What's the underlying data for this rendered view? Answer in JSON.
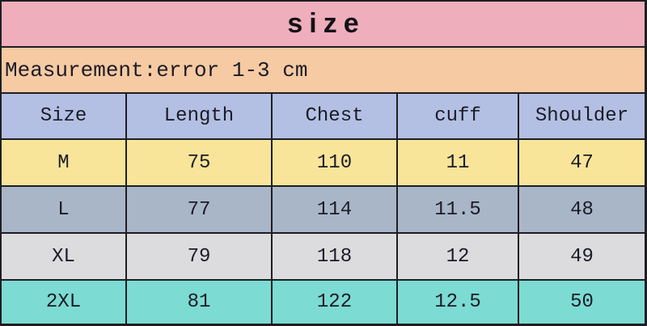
{
  "title": "size",
  "subtitle": "Measurement:error 1-3 cm",
  "table": {
    "columns": [
      "Size",
      "Length",
      "Chest",
      "cuff",
      "Shoulder"
    ],
    "rows": [
      {
        "cells": [
          "M",
          "75",
          "110",
          "11",
          "47"
        ]
      },
      {
        "cells": [
          "L",
          "77",
          "114",
          "11.5",
          "48"
        ]
      },
      {
        "cells": [
          "XL",
          "79",
          "118",
          "12",
          "49"
        ]
      },
      {
        "cells": [
          "2XL",
          "81",
          "122",
          "12.5",
          "50"
        ]
      }
    ]
  },
  "colors": {
    "title_bg": "#efaebc",
    "subtitle_bg": "#f6caa2",
    "header_bg": "#b3c0e3",
    "row_m_bg": "#f8e59a",
    "row_l_bg": "#a9b6c8",
    "row_xl_bg": "#dcdcdf",
    "row_2xl_bg": "#7cdbd2",
    "grid_line": "#1e1e22",
    "text": "#1b1b26"
  },
  "chart_data": {
    "type": "table",
    "title": "size",
    "subtitle": "Measurement:error 1-3 cm",
    "columns": [
      "Size",
      "Length",
      "Chest",
      "cuff",
      "Shoulder"
    ],
    "rows": [
      [
        "M",
        75,
        110,
        11,
        47
      ],
      [
        "L",
        77,
        114,
        11.5,
        48
      ],
      [
        "XL",
        79,
        118,
        12,
        49
      ],
      [
        "2XL",
        81,
        122,
        12.5,
        50
      ]
    ],
    "units": "cm"
  }
}
